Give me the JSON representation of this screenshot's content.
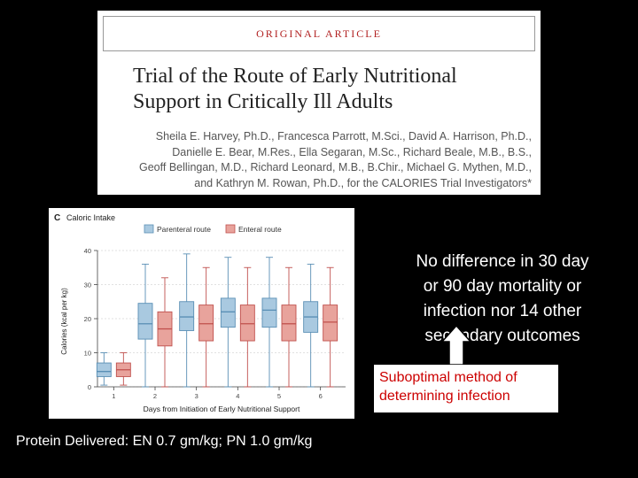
{
  "article": {
    "banner": "ORIGINAL ARTICLE",
    "title_line1": "Trial of the Route of Early Nutritional",
    "title_line2": "Support in Critically Ill Adults",
    "authors": [
      "Sheila E. Harvey, Ph.D., Francesca Parrott, M.Sci., David A. Harrison, Ph.D.,",
      "Danielle E. Bear, M.Res., Ella Segaran, M.Sc., Richard Beale, M.B., B.S.,",
      "Geoff Bellingan, M.D., Richard Leonard, M.B., B.Chir., Michael G. Mythen, M.D.,",
      "and Kathryn M. Rowan, Ph.D., for the CALORIES Trial Investigators*"
    ]
  },
  "chart_data": {
    "type": "box",
    "panel_letter": "C",
    "title": "Caloric Intake",
    "xlabel": "Days from Initiation of Early Nutritional Support",
    "ylabel": "Calories (kcal per kg)",
    "categories": [
      "1",
      "2",
      "3",
      "4",
      "5",
      "6"
    ],
    "ylim": [
      0,
      40
    ],
    "yticks": [
      0,
      10,
      20,
      30,
      40
    ],
    "legend_position": "top",
    "series": [
      {
        "name": "Parenteral route",
        "color": "#a9c9e0",
        "stroke": "#5a8fb5",
        "boxes": [
          {
            "min": 0.5,
            "q1": 3,
            "median": 4.5,
            "q3": 7,
            "max": 10
          },
          {
            "min": 0,
            "q1": 14,
            "median": 18.5,
            "q3": 24.5,
            "max": 36
          },
          {
            "min": 0,
            "q1": 16.5,
            "median": 20.5,
            "q3": 25,
            "max": 39
          },
          {
            "min": 0,
            "q1": 17.5,
            "median": 22,
            "q3": 26,
            "max": 38
          },
          {
            "min": 0,
            "q1": 17.5,
            "median": 22.5,
            "q3": 26,
            "max": 38
          },
          {
            "min": 0,
            "q1": 16,
            "median": 20.5,
            "q3": 25,
            "max": 36
          }
        ]
      },
      {
        "name": "Enteral route",
        "color": "#e8a39c",
        "stroke": "#c0504d",
        "boxes": [
          {
            "min": 0.5,
            "q1": 3,
            "median": 5,
            "q3": 7,
            "max": 10
          },
          {
            "min": 0,
            "q1": 12,
            "median": 17,
            "q3": 22,
            "max": 32
          },
          {
            "min": 0,
            "q1": 13.5,
            "median": 18.5,
            "q3": 24,
            "max": 35
          },
          {
            "min": 0,
            "q1": 13.5,
            "median": 18.5,
            "q3": 24,
            "max": 35
          },
          {
            "min": 0,
            "q1": 13.5,
            "median": 18.5,
            "q3": 24,
            "max": 35
          },
          {
            "min": 0,
            "q1": 13.5,
            "median": 19,
            "q3": 24,
            "max": 35
          }
        ]
      }
    ]
  },
  "note": {
    "lines": [
      "No difference in 30 day",
      "or 90 day mortality or",
      "infection nor 14 other",
      "secondary outcomes"
    ]
  },
  "callout": {
    "line1": "Suboptimal method of",
    "line2": "determining infection"
  },
  "protein": "Protein Delivered: EN 0.7 gm/kg; PN 1.0 gm/kg"
}
